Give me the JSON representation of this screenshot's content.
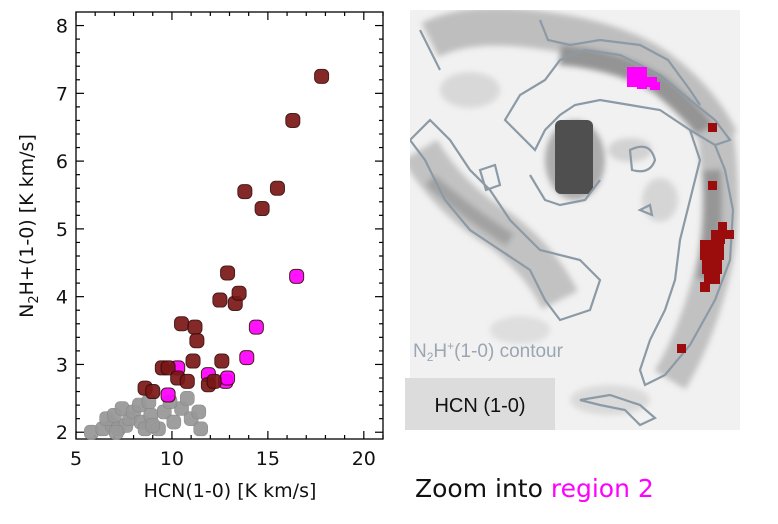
{
  "chart_data": [
    {
      "type": "scatter",
      "xlabel": "HCN(1-0) [K km/s]",
      "ylabel_prefix": "N",
      "ylabel_sub": "2",
      "ylabel_suffix": "H+(1-0) [K km/s]",
      "xlim": [
        5,
        21
      ],
      "ylim": [
        1.9,
        8.2
      ],
      "xticks": [
        5,
        10,
        15,
        20
      ],
      "yticks": [
        2,
        3,
        4,
        5,
        6,
        7,
        8
      ],
      "series": [
        {
          "color": "#999999",
          "points": [
            [
              5.8,
              2.0
            ],
            [
              6.4,
              2.05
            ],
            [
              6.9,
              2.1
            ],
            [
              7.2,
              2.05
            ],
            [
              6.6,
              2.2
            ],
            [
              7.0,
              2.25
            ],
            [
              7.6,
              2.1
            ],
            [
              7.8,
              2.2
            ],
            [
              7.4,
              2.35
            ],
            [
              8.0,
              2.3
            ],
            [
              8.4,
              2.15
            ],
            [
              8.6,
              2.05
            ],
            [
              8.9,
              2.25
            ],
            [
              8.3,
              2.4
            ],
            [
              8.8,
              2.45
            ],
            [
              9.3,
              2.05
            ],
            [
              9.6,
              2.3
            ],
            [
              10.1,
              2.15
            ],
            [
              10.5,
              2.35
            ],
            [
              9.9,
              2.45
            ],
            [
              11.0,
              2.2
            ],
            [
              11.4,
              2.3
            ],
            [
              10.8,
              2.5
            ],
            [
              11.5,
              2.05
            ],
            [
              7.1,
              2.0
            ],
            [
              9.0,
              2.1
            ]
          ]
        },
        {
          "color": "#ff00ff",
          "points": [
            [
              9.8,
              2.55
            ],
            [
              10.3,
              2.95
            ],
            [
              11.9,
              2.85
            ],
            [
              12.8,
              2.75
            ],
            [
              12.9,
              2.8
            ],
            [
              13.9,
              3.1
            ],
            [
              14.4,
              3.55
            ],
            [
              16.5,
              4.3
            ]
          ]
        },
        {
          "color": "#7a1616",
          "points": [
            [
              8.6,
              2.65
            ],
            [
              9.0,
              2.6
            ],
            [
              9.5,
              2.95
            ],
            [
              9.8,
              2.95
            ],
            [
              10.3,
              2.8
            ],
            [
              10.8,
              2.75
            ],
            [
              10.5,
              3.6
            ],
            [
              11.1,
              3.05
            ],
            [
              11.2,
              3.55
            ],
            [
              11.3,
              3.35
            ],
            [
              11.9,
              2.7
            ],
            [
              12.2,
              2.75
            ],
            [
              12.6,
              3.05
            ],
            [
              12.5,
              3.95
            ],
            [
              12.9,
              4.35
            ],
            [
              13.3,
              3.9
            ],
            [
              13.5,
              4.05
            ],
            [
              13.8,
              5.55
            ],
            [
              14.7,
              5.3
            ],
            [
              15.5,
              5.6
            ],
            [
              16.3,
              6.6
            ],
            [
              17.8,
              7.25
            ]
          ]
        }
      ]
    }
  ],
  "map": {
    "contour_label_prefix": "N",
    "contour_label_sub": "2",
    "contour_label_mid": "H",
    "contour_label_sup": "+",
    "contour_label_suffix": "(1-0) contour",
    "legend_box_label": "HCN (1-0)"
  },
  "caption": {
    "text": "Zoom into ",
    "highlight": "region 2",
    "highlight_color": "#ff00ff"
  }
}
